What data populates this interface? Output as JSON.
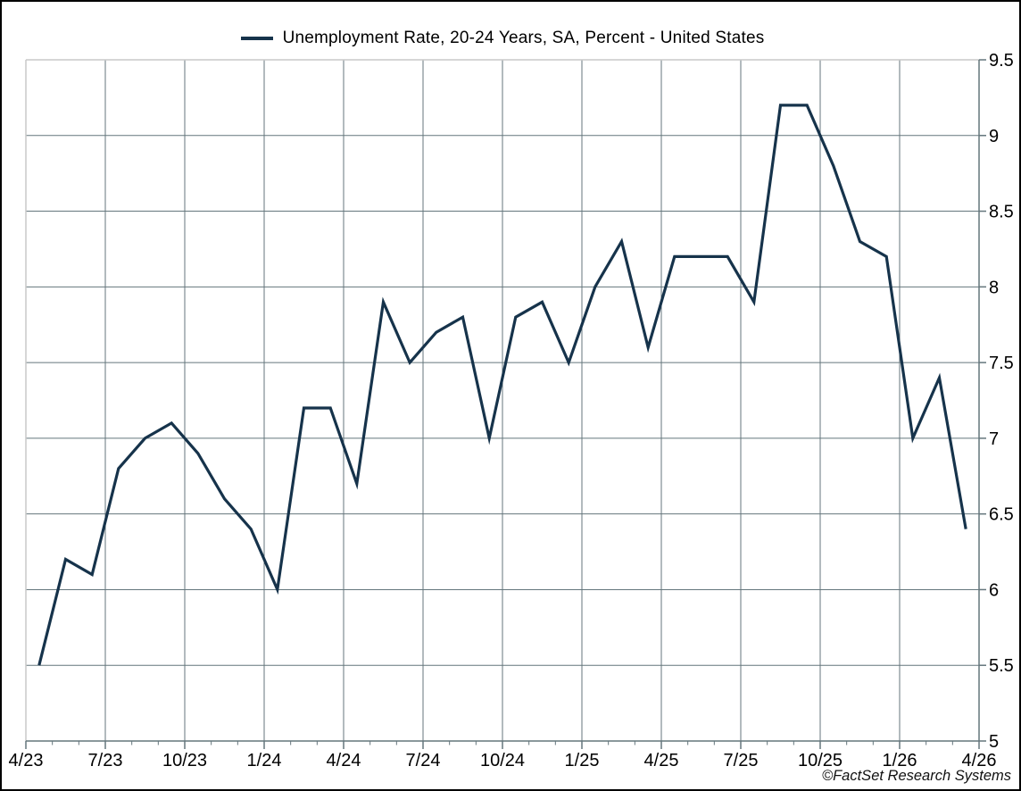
{
  "legend": {
    "series_label": "Unemployment Rate, 20-24 Years, SA, Percent - United States"
  },
  "credit": "©FactSet Research Systems",
  "colors": {
    "line": "#16334b",
    "grid": "#64767c",
    "plot_border_light": "#c9c9c9",
    "text": "#000000",
    "background": "#ffffff",
    "frame": "#000000"
  },
  "chart_data": {
    "type": "line",
    "title": "Unemployment Rate, 20-24 Years, SA, Percent - United States",
    "xlabel": "",
    "ylabel": "",
    "ylim": [
      5,
      9.5
    ],
    "y_step": 0.5,
    "grid": true,
    "legend_position": "top-center",
    "x_tick_labels": [
      "4/23",
      "7/23",
      "10/23",
      "1/24",
      "4/24",
      "7/24",
      "10/24",
      "1/25",
      "4/25",
      "7/25",
      "10/25",
      "1/26",
      "4/26"
    ],
    "y_tick_labels": [
      "5",
      "5.5",
      "6",
      "6.5",
      "7",
      "7.5",
      "8",
      "8.5",
      "9",
      "9.5"
    ],
    "months_per_tick": 3,
    "series": [
      {
        "name": "Unemployment Rate, 20-24 Years, SA, Percent - United States",
        "x": [
          "4/23",
          "5/23",
          "6/23",
          "7/23",
          "8/23",
          "9/23",
          "10/23",
          "11/23",
          "12/23",
          "1/24",
          "2/24",
          "3/24",
          "4/24",
          "5/24",
          "6/24",
          "7/24",
          "8/24",
          "9/24",
          "10/24",
          "11/24",
          "12/24",
          "1/25",
          "2/25",
          "3/25",
          "4/25",
          "5/25",
          "6/25",
          "7/25",
          "8/25",
          "9/25",
          "10/25",
          "11/25",
          "12/25",
          "1/26",
          "2/26",
          "3/26"
        ],
        "values": [
          5.5,
          6.2,
          6.1,
          6.8,
          7.0,
          7.1,
          6.9,
          6.6,
          6.4,
          6.0,
          7.2,
          7.2,
          6.7,
          7.9,
          7.5,
          7.7,
          7.8,
          7.0,
          7.8,
          7.9,
          7.5,
          8.0,
          8.3,
          7.6,
          8.2,
          8.2,
          8.2,
          7.9,
          9.2,
          9.2,
          8.8,
          8.3,
          8.2,
          7.0,
          7.4,
          6.4
        ]
      }
    ]
  }
}
